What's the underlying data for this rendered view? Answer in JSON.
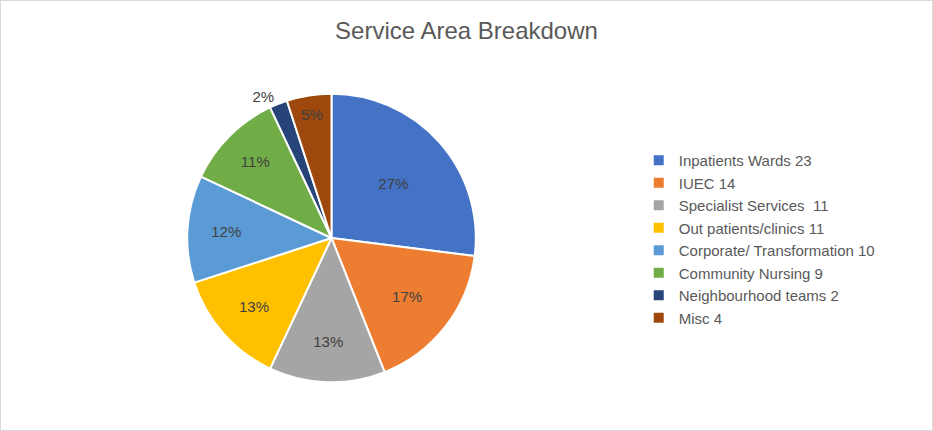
{
  "chart_data": {
    "type": "pie",
    "title": "Service Area Breakdown",
    "categories": [
      "Inpatients Wards 23",
      "IUEC 14",
      "Specialist Services  11",
      "Out patients/clinics 11",
      "Corporate/ Transformation 10",
      "Community Nursing 9",
      "Neighbourhood teams 2",
      "Misc 4"
    ],
    "values": [
      27,
      17,
      13,
      13,
      12,
      11,
      2,
      5
    ],
    "value_labels": [
      "27%",
      "17%",
      "13%",
      "13%",
      "12%",
      "11%",
      "2%",
      "5%"
    ],
    "colors": [
      "#4472c4",
      "#ed7d31",
      "#a5a5a5",
      "#ffc000",
      "#5b9bd5",
      "#70ad47",
      "#264478",
      "#9e480e"
    ],
    "data_labels": true,
    "legend": "right"
  }
}
